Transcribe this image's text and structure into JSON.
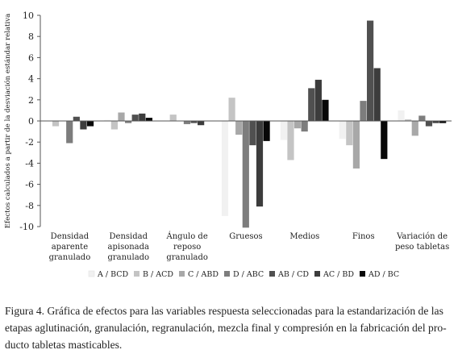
{
  "chart_data": {
    "type": "bar",
    "title": "",
    "xlabel": "",
    "ylabel": "Efectos calculados a partir de la desviación estándar relativa",
    "ylim": [
      -10,
      10
    ],
    "yticks": [
      -10,
      -8,
      -6,
      -4,
      -2,
      0,
      2,
      4,
      6,
      8,
      10
    ],
    "grid": false,
    "legend_position": "bottom",
    "categories": [
      [
        "Densidad",
        "aparente",
        "granulado"
      ],
      [
        "Densidad",
        "apisonada",
        "granulado"
      ],
      [
        "Ángulo de",
        "reposo",
        "granulado"
      ],
      [
        "Gruesos"
      ],
      [
        "Medios"
      ],
      [
        "Finos"
      ],
      [
        "Variación de",
        "peso tabletas"
      ]
    ],
    "series": [
      {
        "name": "A / BCD",
        "color": "#f1f1f1",
        "values": [
          0.0,
          0.1,
          0.0,
          -9.0,
          -1.8,
          -1.7,
          1.0
        ]
      },
      {
        "name": "B / ACD",
        "color": "#c4c4c4",
        "values": [
          -0.5,
          -0.8,
          0.6,
          2.2,
          -3.7,
          -2.3,
          0.15
        ]
      },
      {
        "name": "C / ABD",
        "color": "#a8a8a8",
        "values": [
          0.0,
          0.8,
          0.0,
          -1.3,
          -0.7,
          -4.5,
          -1.4
        ]
      },
      {
        "name": "D / ABC",
        "color": "#7d7d7d",
        "values": [
          -2.1,
          -0.2,
          -0.3,
          -10.1,
          -1.0,
          1.9,
          0.5
        ]
      },
      {
        "name": "AB / CD",
        "color": "#505050",
        "values": [
          0.4,
          0.6,
          -0.2,
          -2.3,
          3.1,
          9.5,
          -0.5
        ]
      },
      {
        "name": "AC / BD",
        "color": "#3c3c3c",
        "values": [
          -0.8,
          0.7,
          -0.4,
          -8.1,
          3.9,
          5.0,
          -0.2
        ]
      },
      {
        "name": "AD / BC",
        "color": "#080808",
        "values": [
          -0.5,
          0.3,
          0.0,
          -1.9,
          2.0,
          -3.6,
          -0.2
        ]
      }
    ]
  },
  "caption": {
    "lines": [
      "Figura 4. Gráfica de efectos para las variables respuesta seleccionadas para la estandarización de las",
      "etapas aglutinación, granulación, regranulación, mezcla final y compresión en la fabricación del pro-",
      "ducto tabletas masticables."
    ]
  }
}
